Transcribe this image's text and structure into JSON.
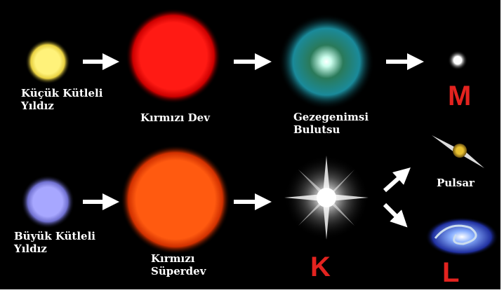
{
  "nodes": [
    {
      "label": [
        "Küçük Kütleli",
        "Yıldız"
      ]
    },
    {
      "label": [
        "Kırmızı Dev"
      ]
    },
    {
      "label": [
        "Gezegenimsi",
        "Bulutsu"
      ]
    },
    {
      "label": [
        "M"
      ]
    },
    {
      "label": [
        "Büyük Kütleli",
        "Yıldız"
      ]
    },
    {
      "label": [
        "Kırmızı",
        "Süperdev"
      ]
    },
    {
      "label": [
        "K"
      ]
    },
    {
      "label": [
        "Pulsar"
      ]
    },
    {
      "label": [
        "L"
      ]
    }
  ]
}
